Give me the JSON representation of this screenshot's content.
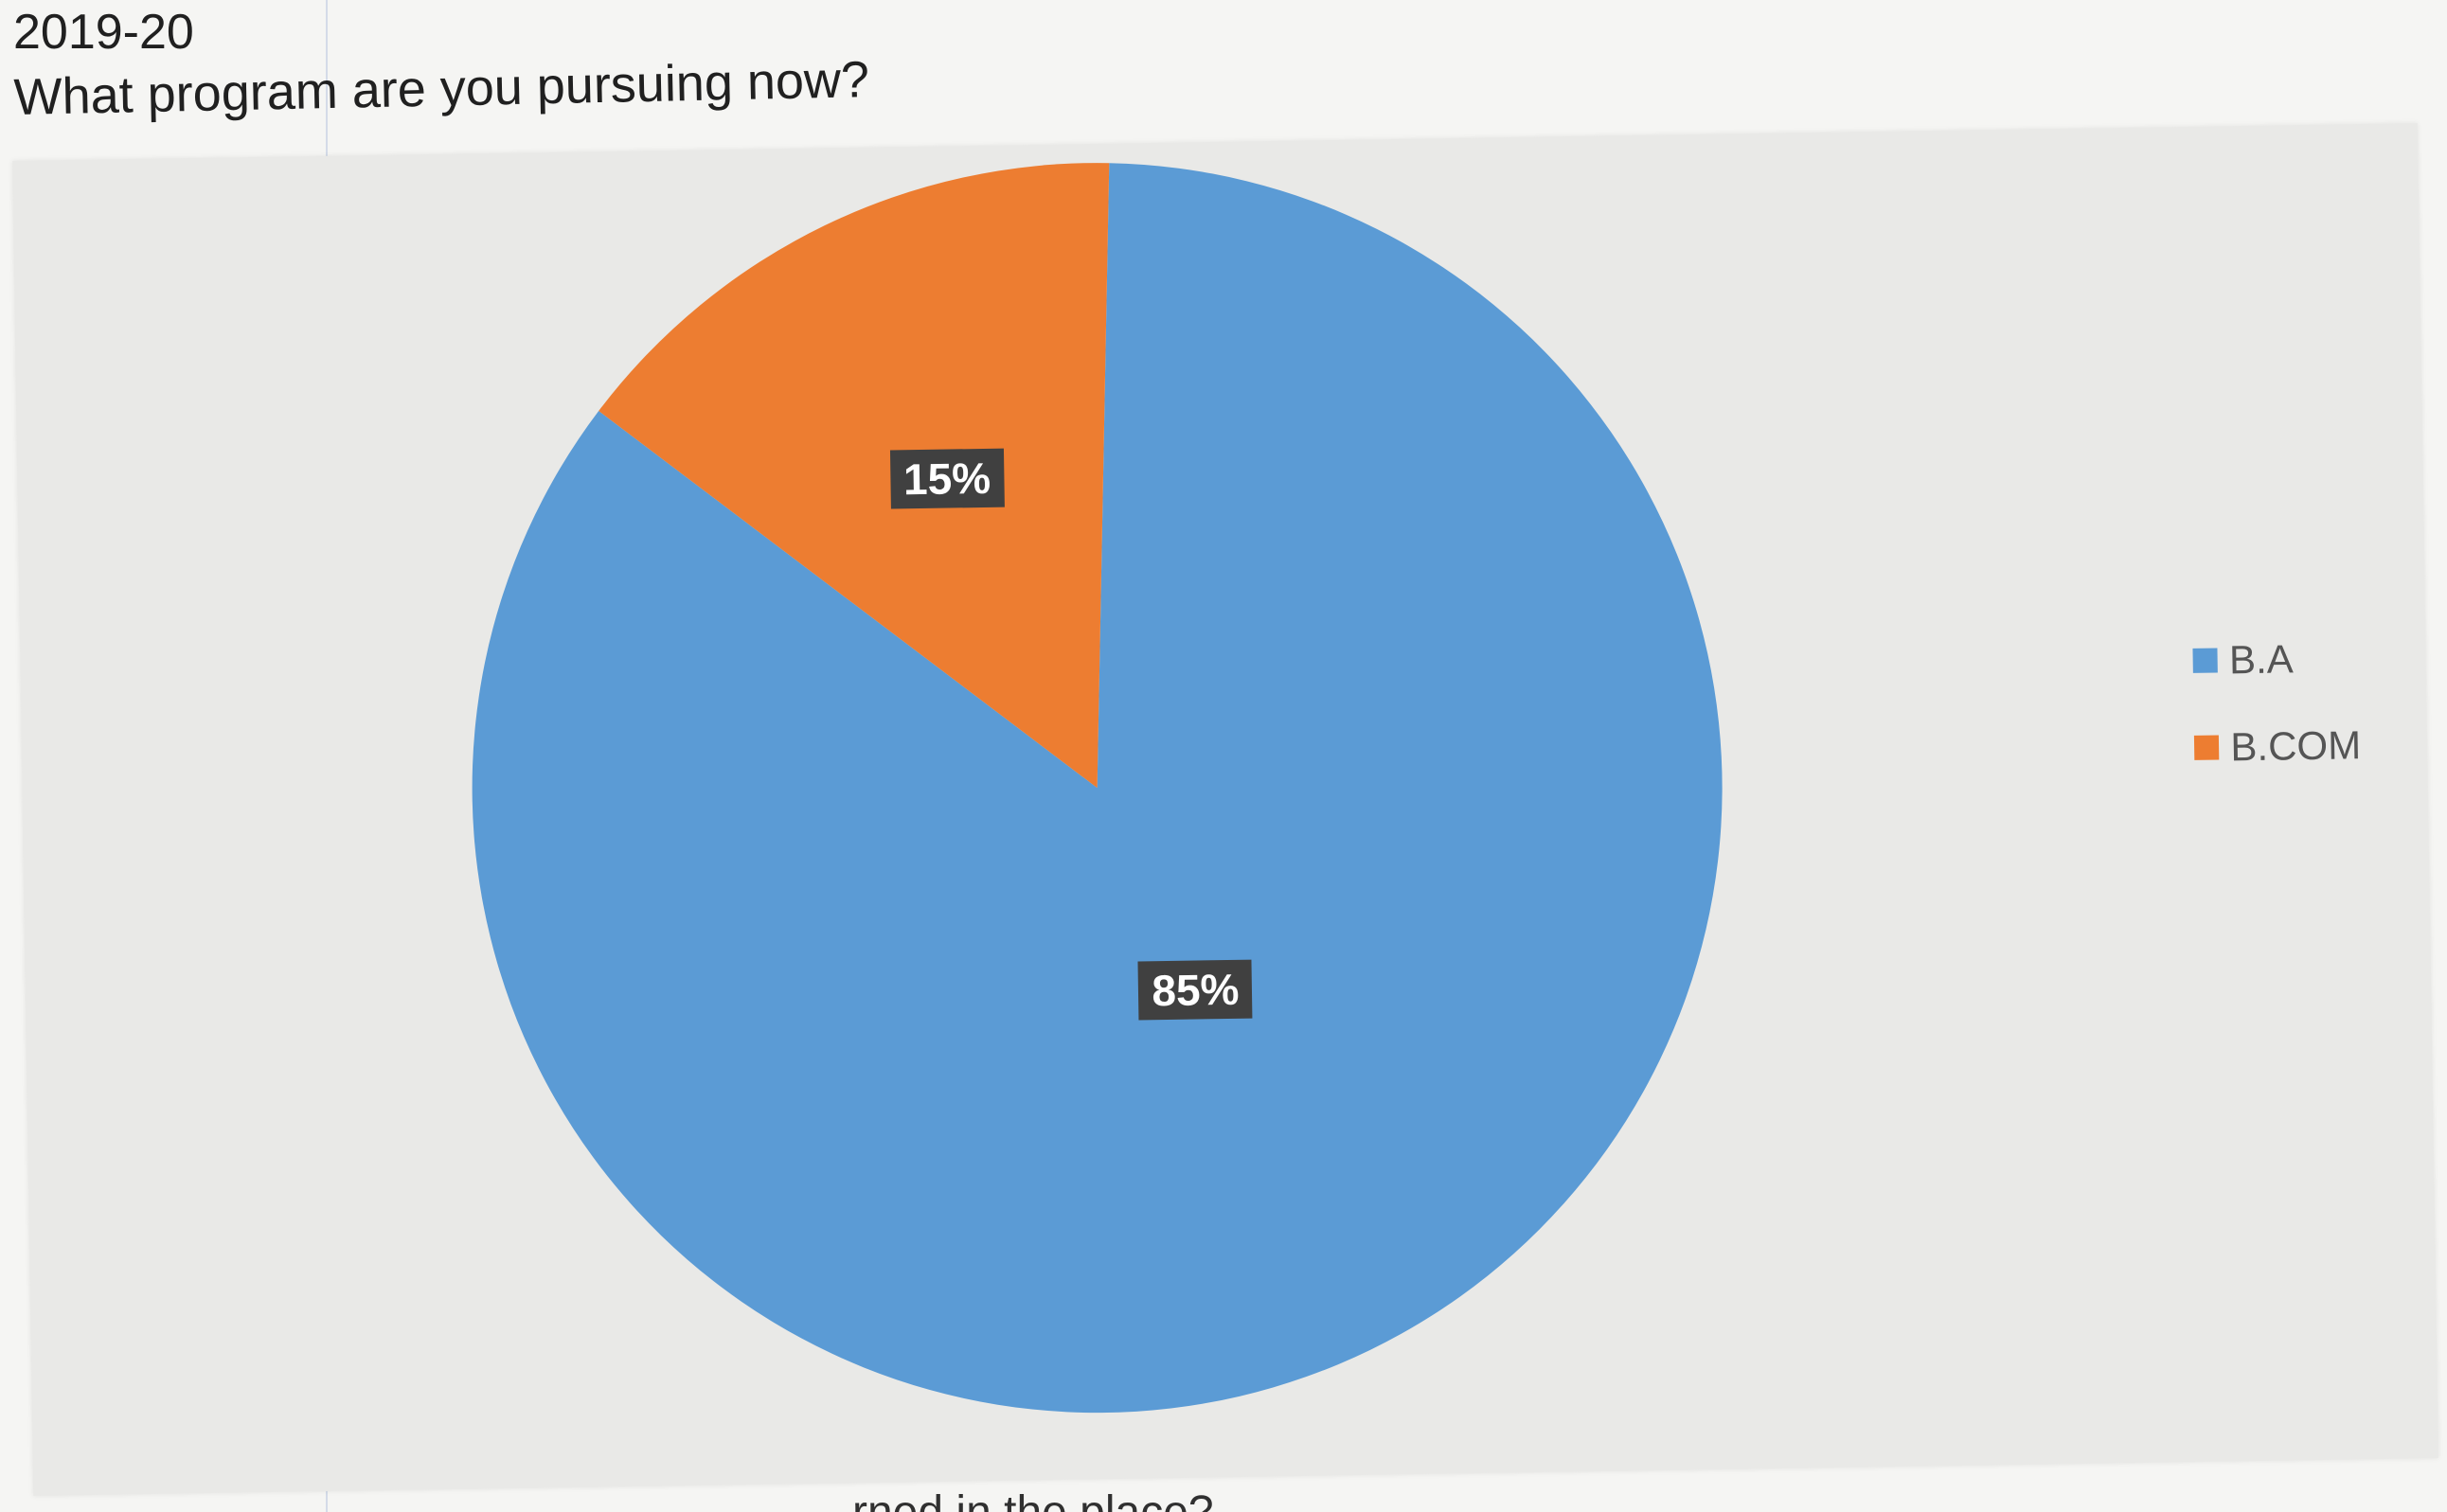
{
  "page": {
    "year": "2019-20",
    "question": "What program are you pursuing now?",
    "bottom_text": "rned in the place?"
  },
  "chart_data": {
    "type": "pie",
    "title": "",
    "categories": [
      "B.A",
      "B.COM"
    ],
    "values": [
      85,
      15
    ],
    "data_labels": [
      "85%",
      "15%"
    ],
    "colors": [
      "#5b9bd5",
      "#ed7d31"
    ],
    "start_angle_deg": -88,
    "legend_position": "right",
    "legend": [
      {
        "label": "B.A",
        "color": "#5b9bd5"
      },
      {
        "label": "B.COM",
        "color": "#ed7d31"
      }
    ]
  }
}
